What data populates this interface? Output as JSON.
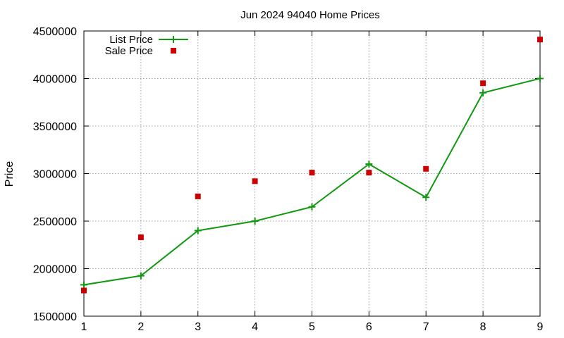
{
  "chart_data": {
    "type": "line",
    "title": "Jun 2024 94040 Home Prices",
    "xlabel": "",
    "ylabel": "Price",
    "x": [
      1,
      2,
      3,
      4,
      5,
      6,
      7,
      8,
      9
    ],
    "xlim": [
      1,
      9
    ],
    "ylim": [
      1500000,
      4500000
    ],
    "x_ticks": [
      "1",
      "2",
      "3",
      "4",
      "5",
      "6",
      "7",
      "8",
      "9"
    ],
    "y_ticks": [
      "1500000",
      "2000000",
      "2500000",
      "3000000",
      "3500000",
      "4000000",
      "4500000"
    ],
    "grid": true,
    "legend_position": "top-left",
    "series": [
      {
        "name": "List Price",
        "style": "linespoints",
        "marker": "plus",
        "color": "#109910",
        "values": [
          1830000,
          1925000,
          2400000,
          2500000,
          2650000,
          3100000,
          2750000,
          3850000,
          4000000
        ]
      },
      {
        "name": "Sale Price",
        "style": "points",
        "marker": "square",
        "color": "#cc0000",
        "values": [
          1770000,
          2330000,
          2760000,
          2920000,
          3010000,
          3010000,
          3050000,
          3950000,
          4410000
        ]
      }
    ]
  }
}
